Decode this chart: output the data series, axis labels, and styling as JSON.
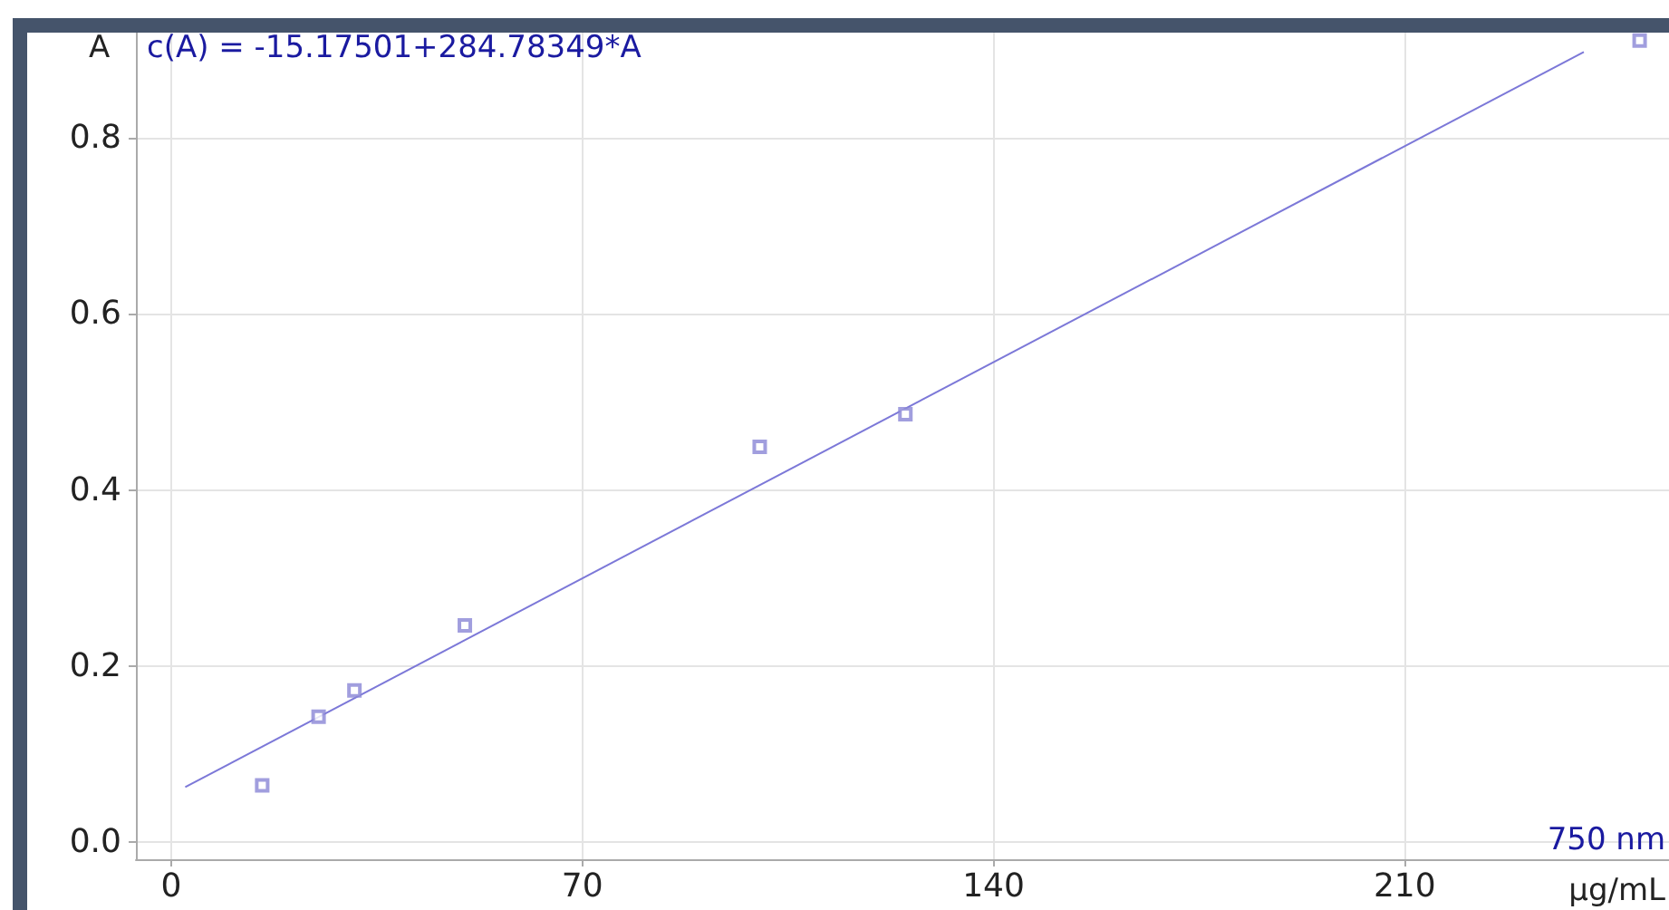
{
  "chart_data": {
    "type": "scatter",
    "xlabel": "μg/mL",
    "ylabel": "A",
    "annotations": [
      "c(A) = -15.17501+284.78349*A",
      "750 nm"
    ],
    "series": [
      {
        "marker": "square",
        "color": "#8a86d6",
        "x": [
          15.5,
          25.1,
          31.2,
          50,
          100.2,
          125,
          250
        ],
        "values": [
          0.064,
          0.142,
          0.172,
          0.246,
          0.449,
          0.486,
          0.911
        ]
      },
      {
        "type": "line",
        "marker": "none",
        "color": "#7c78d8",
        "x": [
          2.4,
          240.5
        ],
        "values": [
          0.062,
          0.898
        ]
      }
    ],
    "xlim": [
      -6,
      255
    ],
    "xticks": [
      0,
      70,
      140,
      210
    ],
    "ylim": [
      -0.02,
      0.92
    ],
    "yticks": [
      {
        "value": 0,
        "label": "0.0"
      },
      0.2,
      0.4,
      0.6,
      0.8
    ],
    "grid": true
  }
}
